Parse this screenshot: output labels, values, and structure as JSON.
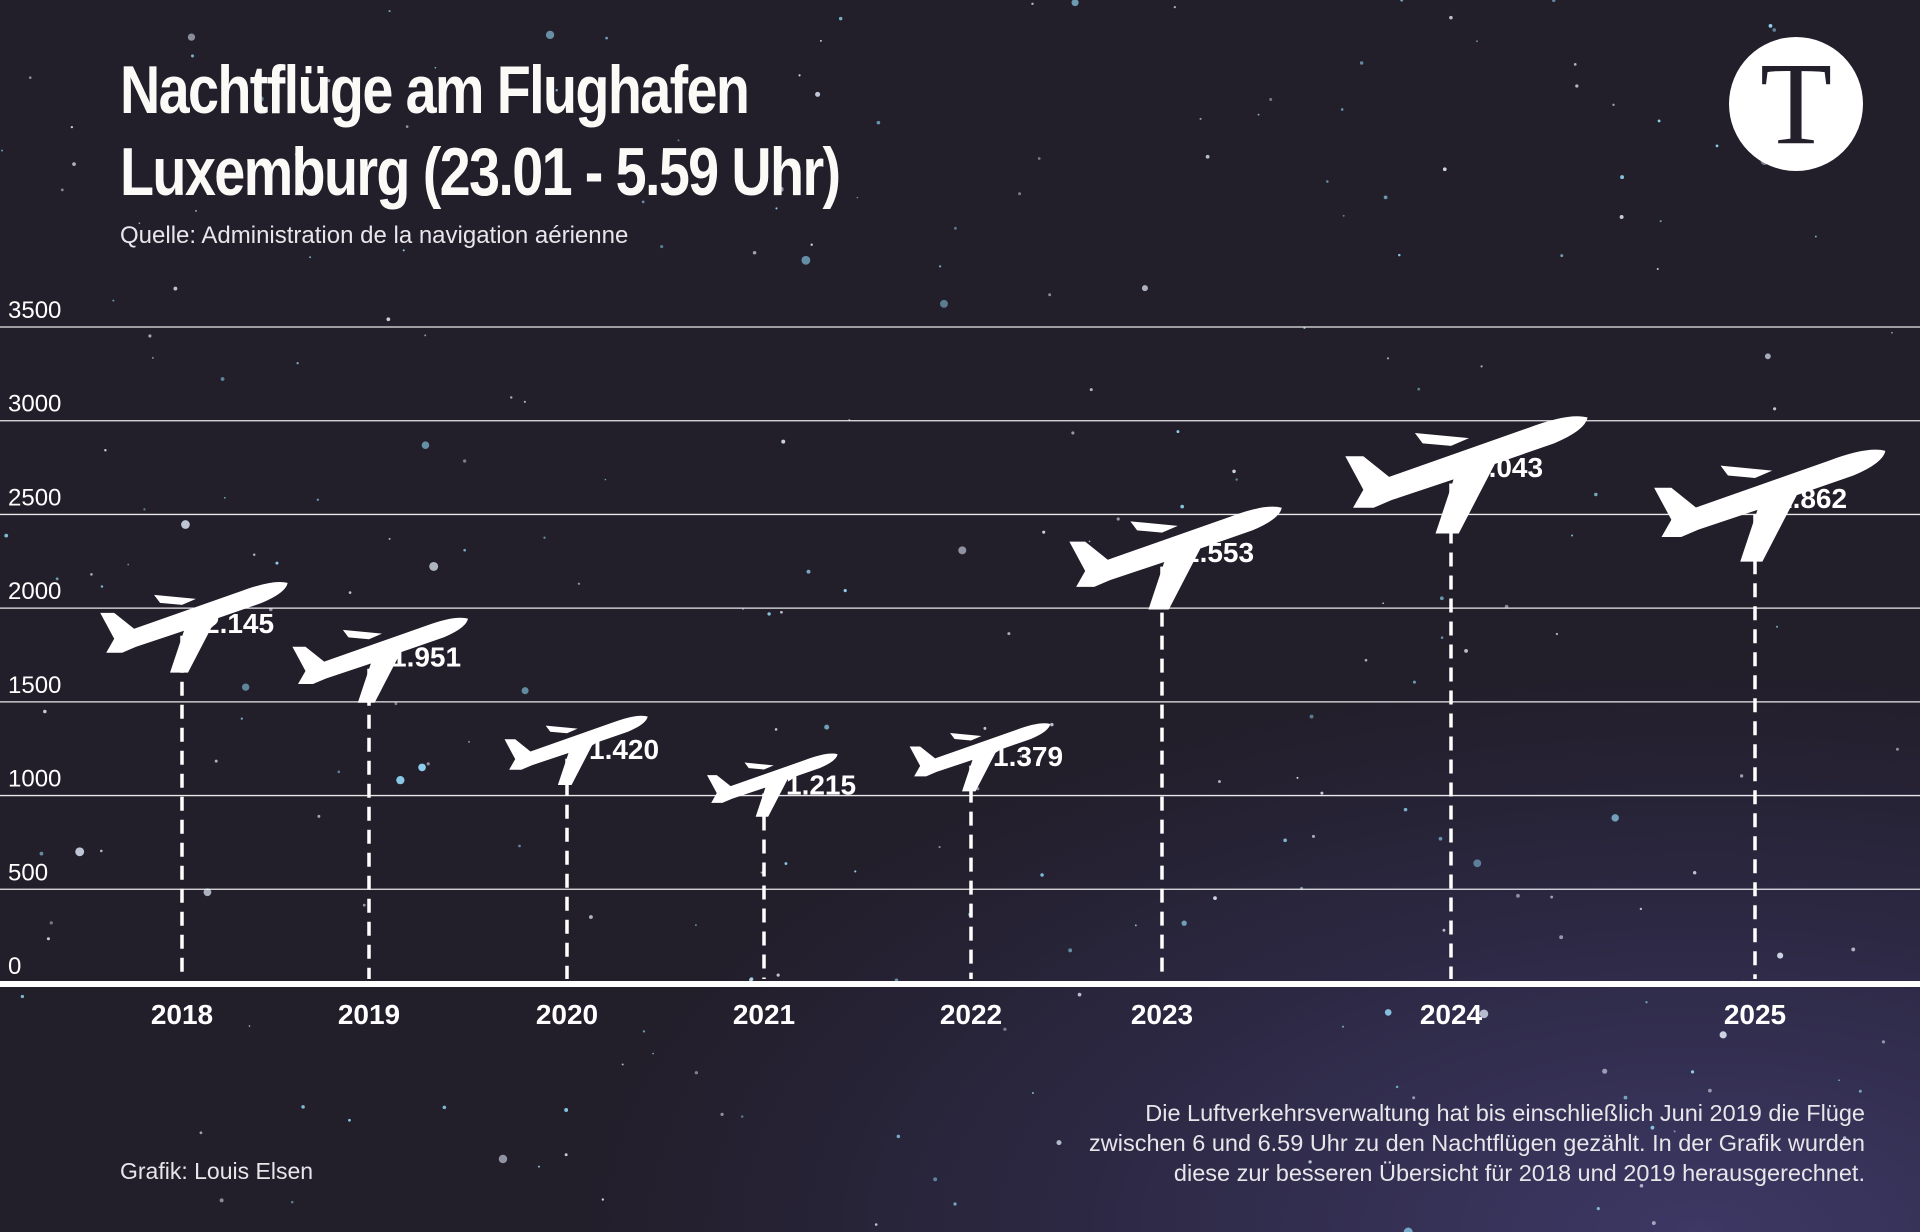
{
  "header": {
    "title_line1": "Nachtflüge am Flughafen",
    "title_line2": "Luxemburg (23.01 - 5.59 Uhr)",
    "source": "Quelle: Administration de la navigation aérienne"
  },
  "logo": {
    "letter": "T"
  },
  "footer": {
    "credit": "Grafik: Louis Elsen",
    "note_lines": [
      "Die Luftverkehrsverwaltung hat bis einschließlich Juni 2019 die Flüge",
      "zwischen 6 und 6.59 Uhr zu den Nachtflügen gezählt. In der Grafik wurden",
      "diese zur besseren Übersicht für 2018 und 2019 herausgerechnet."
    ]
  },
  "colors": {
    "background": "#231f2b",
    "background_bottom_right": "#3d3864",
    "marks": "#ffffff",
    "stars": "#8fd3f0"
  },
  "chart_data": {
    "type": "bar",
    "mark_style": "airplane icons with dashed drop lines",
    "categories": [
      "2018",
      "2019",
      "2020",
      "2021",
      "2022",
      "2023",
      "2024",
      "2025"
    ],
    "values": [
      2145,
      1951,
      1420,
      1215,
      1379,
      2553,
      3043,
      2862
    ],
    "data_labels": [
      "2.145",
      "1.951",
      "1.420",
      "1.215",
      "1.379",
      "2.553",
      "3.043",
      "2.862"
    ],
    "title": "Nachtflüge am Flughafen Luxemburg (23.01 - 5.59 Uhr)",
    "xlabel": "",
    "ylabel": "",
    "ylim": [
      0,
      3500
    ],
    "yticks": [
      0,
      500,
      1000,
      1500,
      2000,
      2500,
      3000,
      3500
    ],
    "grid": true,
    "legend": "none"
  }
}
